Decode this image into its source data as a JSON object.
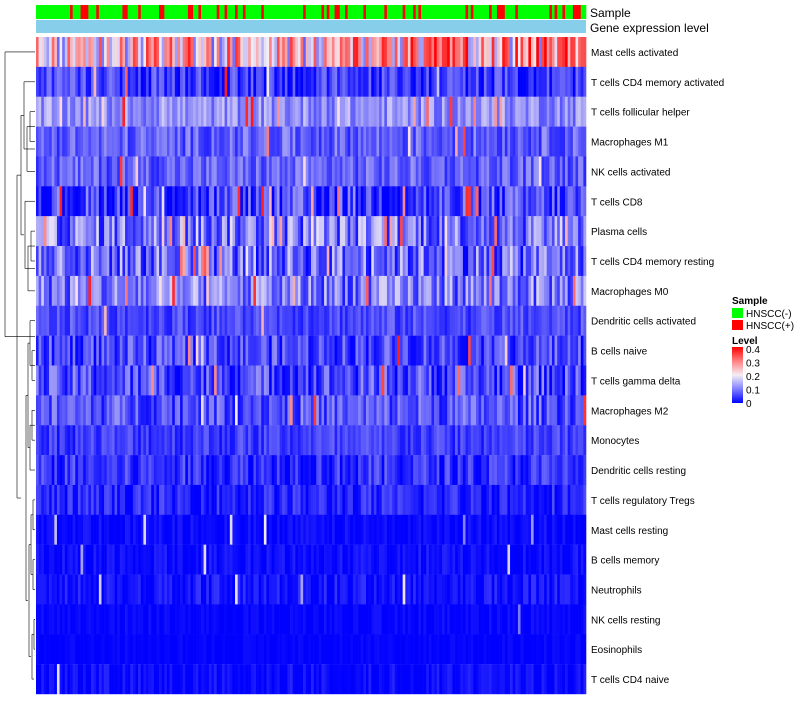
{
  "chart_data": {
    "type": "heatmap",
    "title": "",
    "annotation_tracks": [
      "Sample",
      "Gene expression level"
    ],
    "rows": [
      {
        "label": "Mast cells activated",
        "base": 0.22,
        "spread": 0.14,
        "pink_rate": 0.28
      },
      {
        "label": "T cells CD4 memory activated",
        "base": 0.045,
        "spread": 0.06,
        "pink_rate": 0.02
      },
      {
        "label": "T cells follicular helper",
        "base": 0.12,
        "spread": 0.05,
        "pink_rate": 0.06
      },
      {
        "label": "Macrophages M1",
        "base": 0.08,
        "spread": 0.05,
        "pink_rate": 0.02
      },
      {
        "label": "NK cells activated",
        "base": 0.08,
        "spread": 0.05,
        "pink_rate": 0.02
      },
      {
        "label": "T cells CD8",
        "base": 0.05,
        "spread": 0.08,
        "pink_rate": 0.05
      },
      {
        "label": "Plasma cells",
        "base": 0.1,
        "spread": 0.09,
        "pink_rate": 0.07
      },
      {
        "label": "T cells CD4 memory resting",
        "base": 0.09,
        "spread": 0.09,
        "pink_rate": 0.07
      },
      {
        "label": "Macrophages M0",
        "base": 0.1,
        "spread": 0.08,
        "pink_rate": 0.07
      },
      {
        "label": "Dendritic cells activated",
        "base": 0.06,
        "spread": 0.04,
        "pink_rate": 0.01
      },
      {
        "label": "B cells naive",
        "base": 0.06,
        "spread": 0.06,
        "pink_rate": 0.02
      },
      {
        "label": "T cells gamma delta",
        "base": 0.06,
        "spread": 0.07,
        "pink_rate": 0.02
      },
      {
        "label": "Macrophages M2",
        "base": 0.07,
        "spread": 0.06,
        "pink_rate": 0.02
      },
      {
        "label": "Monocytes",
        "base": 0.05,
        "spread": 0.04,
        "pink_rate": 0.0
      },
      {
        "label": "Dendritic cells resting",
        "base": 0.04,
        "spread": 0.05,
        "pink_rate": 0.0
      },
      {
        "label": "T cells regulatory  Tregs",
        "base": 0.03,
        "spread": 0.04,
        "pink_rate": 0.0
      },
      {
        "label": "Mast cells resting",
        "base": 0.005,
        "spread": 0.02,
        "pink_rate": 0.0
      },
      {
        "label": "B cells memory",
        "base": 0.008,
        "spread": 0.025,
        "pink_rate": 0.0
      },
      {
        "label": "Neutrophils",
        "base": 0.015,
        "spread": 0.03,
        "pink_rate": 0.0
      },
      {
        "label": "NK cells resting",
        "base": 0.003,
        "spread": 0.015,
        "pink_rate": 0.0
      },
      {
        "label": "Eosinophils",
        "base": 0.002,
        "spread": 0.01,
        "pink_rate": 0.0
      },
      {
        "label": "T cells CD4 naive",
        "base": 0.006,
        "spread": 0.025,
        "pink_rate": 0.0
      }
    ],
    "n_samples": 210,
    "color_scale": {
      "min": 0,
      "max": 0.4,
      "low": "#0000ff",
      "mid": "#f4eef4",
      "high": "#ff0000"
    },
    "legend": {
      "position": "right",
      "sample_title": "Sample",
      "sample_items": [
        {
          "label": "HNSCC(-)",
          "color": "#00ff00"
        },
        {
          "label": "HNSCC(+)",
          "color": "#ff0000"
        }
      ],
      "level_title": "Level",
      "level_ticks": [
        "0.4",
        "0.3",
        "0.2",
        "0.1",
        "0"
      ]
    },
    "track_colors": {
      "negative": "#00ff00",
      "positive": "#ff0000",
      "expression": "#87ceeb"
    }
  }
}
